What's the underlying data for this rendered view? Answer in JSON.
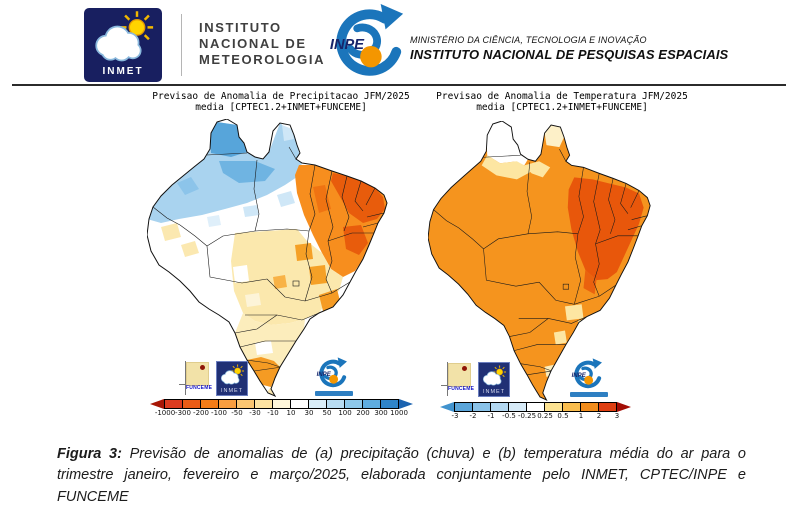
{
  "header": {
    "inmet_logo_label": "INMET",
    "institute_name_lines": [
      "INSTITUTO",
      "NACIONAL DE",
      "METEOROLOGIA"
    ],
    "inpe_logo_label": "INPE",
    "ministry_line": "MINISTÉRIO DA CIÊNCIA, TECNOLOGIA E INOVAÇÃO",
    "institute_line": "INSTITUTO NACIONAL DE PESQUISAS ESPACIAIS"
  },
  "maps": {
    "precipitation": {
      "title_line1": "Previsao de Anomalia de Precipitacao JFM/2025",
      "title_line2": "media [CPTEC1.2+INMET+FUNCEME]",
      "footer_logos": {
        "funceme": "FUNCEME",
        "inmet": "INMET",
        "inpe": "INPE"
      },
      "colorbar": {
        "ticks": [
          "-1000",
          "-300",
          "-200",
          "-100",
          "-50",
          "-30",
          "-10",
          "10",
          "30",
          "50",
          "100",
          "200",
          "300",
          "1000"
        ],
        "segment_colors": [
          "#dc3b1f",
          "#ea5c17",
          "#f47c17",
          "#f89e40",
          "#fbc672",
          "#fde3a2",
          "#fef6da",
          "#ffffff",
          "#d9edf8",
          "#b8dcf2",
          "#8ec8ea",
          "#5fade0",
          "#2f84c8"
        ],
        "left_arrow_color": "#a81605",
        "right_arrow_color": "#1b63b0"
      }
    },
    "temperature": {
      "title_line1": "Previsao de Anomalia de Temperatura JFM/2025",
      "title_line2": "media [CPTEC1.2+INMET+FUNCEME]",
      "footer_logos": {
        "funceme": "FUNCEME",
        "inmet": "INMET",
        "inpe": "INPE"
      },
      "colorbar": {
        "ticks": [
          "-3",
          "-2",
          "-1",
          "-0.5",
          "-0.25",
          "0.25",
          "0.5",
          "1",
          "2",
          "3"
        ],
        "segment_colors": [
          "#5aa5da",
          "#8ac2e8",
          "#b3d8f1",
          "#d6eaf7",
          "#ffffff",
          "#fce291",
          "#f9bd4e",
          "#f18c1c",
          "#df3f12"
        ],
        "left_arrow_color": "#4193ce",
        "right_arrow_color": "#a30d05"
      }
    }
  },
  "caption": {
    "label": "Figura 3:",
    "text": " Previsão de anomalias de (a) precipitação (chuva) e (b) temperatura média do ar para o trimestre janeiro, fevereiro e março/2025, elaborada conjuntamente pelo INMET, CPTEC/INPE e FUNCEME"
  }
}
